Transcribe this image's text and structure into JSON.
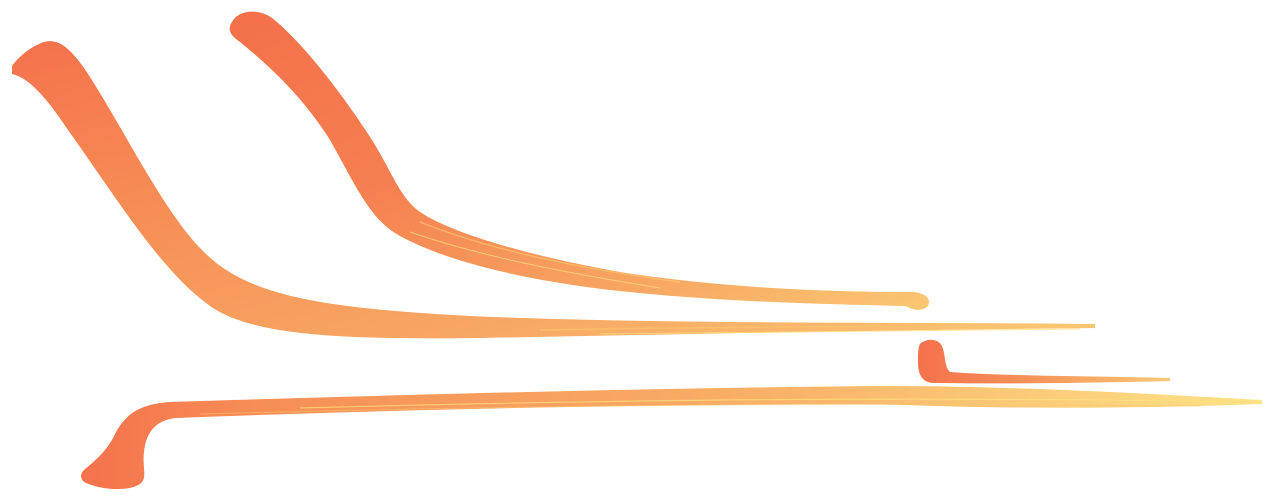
{
  "colors": {
    "background": "#ffffff",
    "stroke_main": "#f6884d",
    "stroke_hot": "#f46a43",
    "stroke_warm": "#f7a25b",
    "stroke_edge": "#fbc56d",
    "stroke_dry": "#fde07f"
  },
  "strokes": [
    {
      "name": "brush-stroke-long-curve"
    },
    {
      "name": "brush-stroke-upper-curve"
    },
    {
      "name": "brush-stroke-short-hook"
    },
    {
      "name": "brush-stroke-bottom-sweep"
    }
  ]
}
